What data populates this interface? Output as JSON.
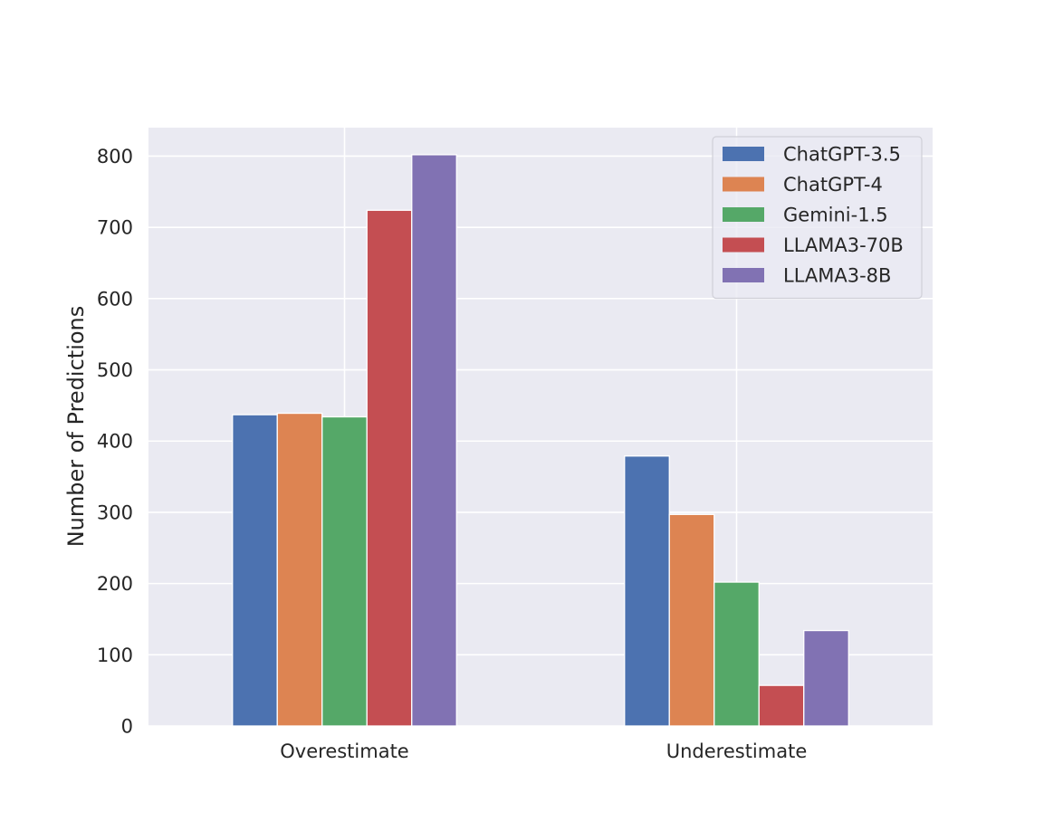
{
  "chart_data": {
    "type": "bar",
    "title": "",
    "xlabel": "",
    "ylabel": "Number of Predictions",
    "categories": [
      "Overestimate",
      "Underestimate"
    ],
    "series": [
      {
        "name": "ChatGPT-3.5",
        "color": "#4c72b0",
        "values": [
          437,
          379
        ]
      },
      {
        "name": "ChatGPT-4",
        "color": "#dd8452",
        "values": [
          439,
          297
        ]
      },
      {
        "name": "Gemini-1.5",
        "color": "#55a868",
        "values": [
          434,
          202
        ]
      },
      {
        "name": "LLAMA3-70B",
        "color": "#c44e52",
        "values": [
          724,
          57
        ]
      },
      {
        "name": "LLAMA3-8B",
        "color": "#8172b3",
        "values": [
          802,
          134
        ]
      }
    ],
    "ylim": [
      0,
      840
    ],
    "yticks": [
      0,
      100,
      200,
      300,
      400,
      500,
      600,
      700,
      800
    ],
    "ytick_labels": [
      "0",
      "100",
      "200",
      "300",
      "400",
      "500",
      "600",
      "700",
      "800"
    ],
    "grid": true,
    "legend_position": "top-right",
    "colors": {
      "plot_background": "#eaeaf2",
      "grid": "#ffffff",
      "text": "#262626"
    }
  }
}
